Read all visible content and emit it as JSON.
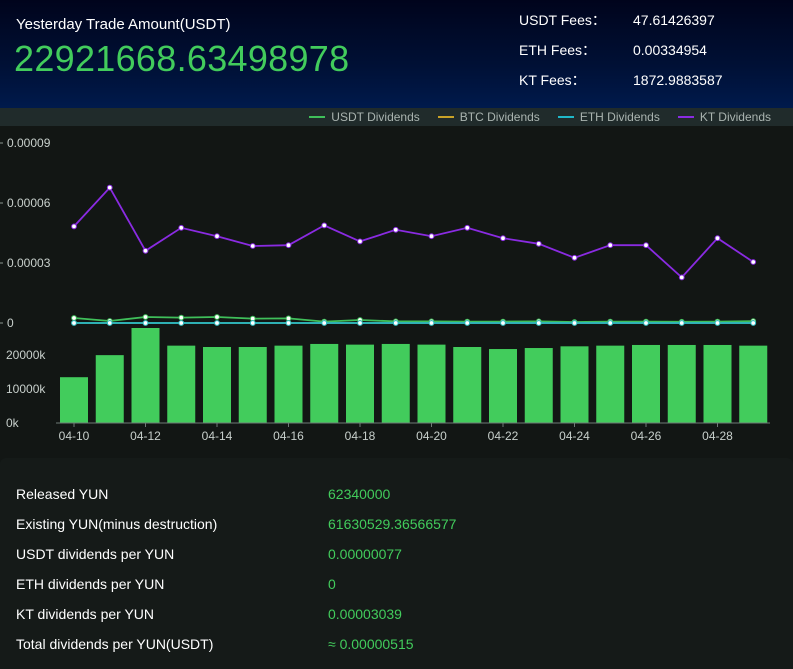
{
  "header": {
    "label": "Yesterday Trade Amount(USDT)",
    "amount": "22921668.63498978",
    "fees": [
      {
        "label": "USDT Fees：",
        "value": "47.61426397"
      },
      {
        "label": "ETH Fees：",
        "value": "0.00334954"
      },
      {
        "label": "KT Fees：",
        "value": "1872.9883587"
      }
    ]
  },
  "colors": {
    "usdt": "#3fbf5a",
    "btc": "#c9a227",
    "eth": "#1fb8c9",
    "kt": "#8a2be2",
    "bar": "#42cc5c"
  },
  "chart_data": {
    "type": "line+bar",
    "legend": [
      "USDT Dividends",
      "BTC Dividends",
      "ETH Dividends",
      "KT Dividends"
    ],
    "legend_position": "top-right",
    "dates": [
      "04-10",
      "04-11",
      "04-12",
      "04-13",
      "04-14",
      "04-15",
      "04-16",
      "04-17",
      "04-18",
      "04-19",
      "04-20",
      "04-21",
      "04-22",
      "04-23",
      "04-24",
      "04-25",
      "04-26",
      "04-27",
      "04-28",
      "04-29"
    ],
    "x_tick_labels": [
      "04-10",
      "04-12",
      "04-14",
      "04-16",
      "04-18",
      "04-20",
      "04-22",
      "04-24",
      "04-26",
      "04-28"
    ],
    "top_axis": {
      "ticks": [
        "0.00009",
        "0.00006",
        "0.00003",
        "0"
      ],
      "range": [
        0,
        9e-05
      ]
    },
    "series": [
      {
        "name": "USDT Dividends",
        "values": [
          2.5e-06,
          1e-06,
          3e-06,
          2.7e-06,
          3e-06,
          2.2e-06,
          2.3e-06,
          7e-07,
          1.5e-06,
          8e-07,
          8e-07,
          7e-07,
          7e-07,
          8e-07,
          5e-07,
          7e-07,
          7e-07,
          6e-07,
          7e-07,
          9e-07
        ]
      },
      {
        "name": "BTC Dividends",
        "values": [
          0,
          0,
          0,
          0,
          0,
          0,
          0,
          0,
          0,
          0,
          0,
          0,
          0,
          0,
          0,
          0,
          0,
          0,
          0,
          0
        ]
      },
      {
        "name": "ETH Dividends",
        "values": [
          0,
          0,
          0,
          0,
          0,
          0,
          0,
          0,
          0,
          0,
          0,
          0,
          0,
          0,
          0,
          0,
          0,
          0,
          0,
          0
        ]
      },
      {
        "name": "KT Dividends",
        "values": [
          4.83e-05,
          6.77e-05,
          3.61e-05,
          4.76e-05,
          4.34e-05,
          3.85e-05,
          3.89e-05,
          4.88e-05,
          4.08e-05,
          4.66e-05,
          4.34e-05,
          4.76e-05,
          4.24e-05,
          3.96e-05,
          3.26e-05,
          3.89e-05,
          3.89e-05,
          2.28e-05,
          4.24e-05,
          3.05e-05
        ]
      }
    ],
    "bottom_axis": {
      "ticks": [
        "20000k",
        "10000k",
        "0k"
      ],
      "range": [
        0,
        28000000
      ]
    },
    "bars": [
      13500000,
      20000000,
      28000000,
      22800000,
      22400000,
      22400000,
      22800000,
      23300000,
      23100000,
      23300000,
      23100000,
      22400000,
      21800000,
      22100000,
      22600000,
      22800000,
      23000000,
      23000000,
      23000000,
      22800000
    ]
  },
  "stats": [
    {
      "label": "Released YUN",
      "value": "62340000"
    },
    {
      "label": "Existing YUN(minus destruction)",
      "value": "61630529.36566577"
    },
    {
      "label": "USDT dividends per YUN",
      "value": "0.00000077"
    },
    {
      "label": "ETH dividends per YUN",
      "value": "0"
    },
    {
      "label": "KT dividends per YUN",
      "value": "0.00003039"
    },
    {
      "label": "Total dividends per YUN(USDT)",
      "value": "≈ 0.00000515"
    }
  ]
}
